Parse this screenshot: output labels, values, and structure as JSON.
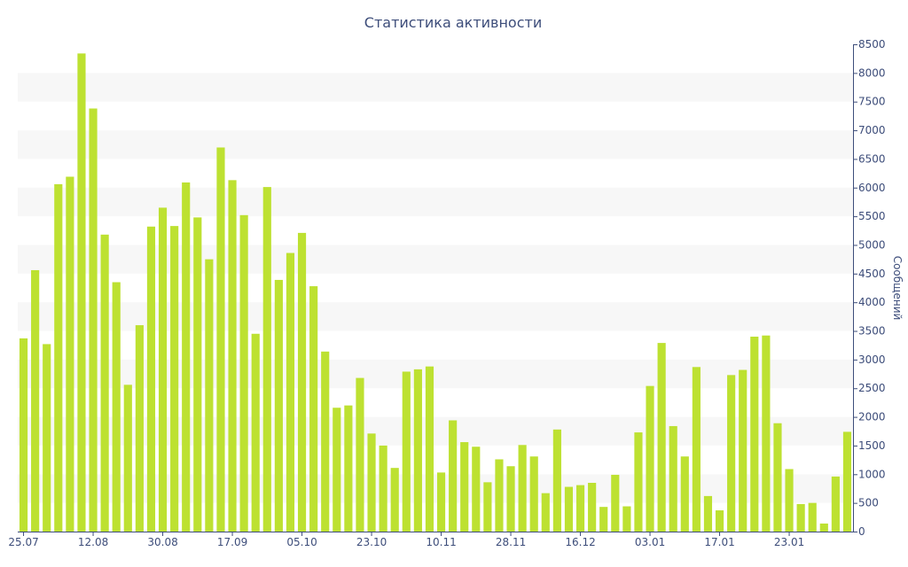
{
  "chart_data": {
    "type": "bar",
    "title": "Статистика активности",
    "ylabel": "Сообщений",
    "xlabel": "",
    "ylim": [
      0,
      8500
    ],
    "y_ticks": [
      0,
      500,
      1000,
      1500,
      2000,
      2500,
      3000,
      3500,
      4000,
      4500,
      5000,
      5500,
      6000,
      6500,
      7000,
      7500,
      8000,
      8500
    ],
    "grid": "alternating horizontal bands",
    "y_axis_position": "right",
    "bar_color": "#bde131",
    "x_tick_labels": [
      {
        "index": 0,
        "label": "25.07"
      },
      {
        "index": 6,
        "label": "12.08"
      },
      {
        "index": 12,
        "label": "30.08"
      },
      {
        "index": 18,
        "label": "17.09"
      },
      {
        "index": 24,
        "label": "05.10"
      },
      {
        "index": 30,
        "label": "23.10"
      },
      {
        "index": 36,
        "label": "10.11"
      },
      {
        "index": 42,
        "label": "28.11"
      },
      {
        "index": 48,
        "label": "16.12"
      },
      {
        "index": 54,
        "label": "03.01"
      },
      {
        "index": 60,
        "label": "17.01"
      },
      {
        "index": 66,
        "label": "23.01"
      }
    ],
    "values": [
      3370,
      4560,
      3270,
      6060,
      6190,
      8340,
      7380,
      5180,
      4350,
      2560,
      3600,
      5320,
      5650,
      5330,
      6090,
      5480,
      4750,
      6700,
      6130,
      5520,
      3450,
      6010,
      4390,
      4860,
      5210,
      4280,
      3140,
      2160,
      2200,
      2680,
      1710,
      1500,
      1110,
      2790,
      2830,
      2880,
      1030,
      1940,
      1560,
      1480,
      860,
      1260,
      1140,
      1510,
      1310,
      670,
      1780,
      780,
      810,
      850,
      430,
      990,
      440,
      1730,
      2540,
      3290,
      1840,
      1310,
      2870,
      620,
      370,
      2730,
      2820,
      3400,
      3420,
      1890,
      1090,
      480,
      500,
      140,
      960,
      1740
    ]
  }
}
